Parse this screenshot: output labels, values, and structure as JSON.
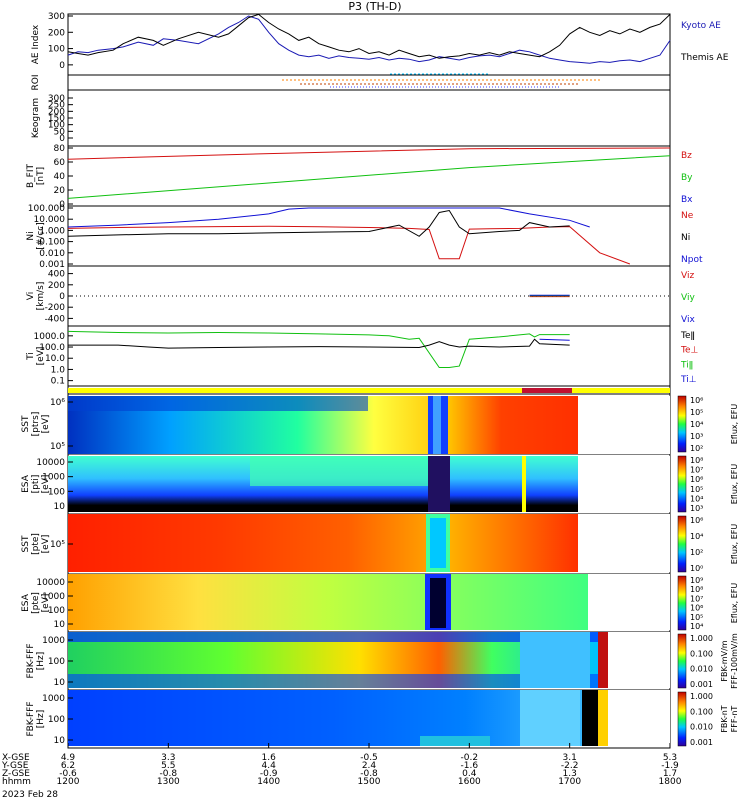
{
  "chart_data": {
    "type": "line",
    "title": "P3 (TH-D)",
    "date_label": "2023 Feb 28",
    "time_axis": {
      "row_labels": [
        "X-GSE",
        "Y-GSE",
        "Z-GSE",
        "hhmm"
      ],
      "ticks": [
        {
          "x_gse": "4.9",
          "y_gse": "6.2",
          "z_gse": "-0.6",
          "hhmm": "1200"
        },
        {
          "x_gse": "3.3",
          "y_gse": "5.5",
          "z_gse": "-0.8",
          "hhmm": "1300"
        },
        {
          "x_gse": "1.6",
          "y_gse": "4.4",
          "z_gse": "-0.9",
          "hhmm": "1400"
        },
        {
          "x_gse": "-0.5",
          "y_gse": "2.4",
          "z_gse": "-0.8",
          "hhmm": "1500"
        },
        {
          "x_gse": "-0.2",
          "y_gse": "-1.6",
          "z_gse": "0.4",
          "hhmm": "1600"
        },
        {
          "x_gse": "3.1",
          "y_gse": "-2.2",
          "z_gse": "1.3",
          "hhmm": "1700"
        },
        {
          "x_gse": "5.3",
          "y_gse": "-1.9",
          "z_gse": "1.7",
          "hhmm": "1800"
        }
      ]
    },
    "panels": [
      {
        "id": "ae",
        "ylabel": "AE Index",
        "yticks": [
          "300",
          "200",
          "100",
          "0"
        ],
        "ylim": [
          -50,
          300
        ],
        "legend": [
          {
            "name": "Kyoto AE",
            "color": "#1a1ab4"
          },
          {
            "name": "Themis AE",
            "color": "#000000"
          }
        ],
        "series": [
          {
            "name": "Kyoto AE",
            "color": "#1a1ab4",
            "x": [
              0,
              0.1,
              0.2,
              0.3,
              0.45,
              0.55,
              0.7,
              0.85,
              0.95,
              1.1,
              1.3,
              1.5,
              1.6,
              1.7,
              1.8,
              1.9,
              2.0,
              2.1,
              2.2,
              2.3,
              2.4,
              2.5,
              2.6,
              2.7,
              2.8,
              2.9,
              3.0,
              3.1,
              3.2,
              3.3,
              3.4,
              3.5,
              3.6,
              3.7,
              3.8,
              3.9,
              4.0,
              4.1,
              4.2,
              4.3,
              4.4,
              4.5,
              4.6,
              4.7,
              4.8,
              4.9,
              5.0,
              5.1,
              5.2,
              5.3,
              5.4,
              5.5,
              5.6,
              5.7,
              5.8,
              5.9,
              6.0
            ],
            "y": [
              60,
              80,
              75,
              90,
              100,
              110,
              140,
              120,
              160,
              150,
              130,
              190,
              230,
              260,
              300,
              280,
              200,
              130,
              90,
              60,
              50,
              60,
              40,
              55,
              45,
              40,
              35,
              45,
              30,
              40,
              35,
              20,
              30,
              50,
              40,
              30,
              45,
              55,
              60,
              50,
              70,
              90,
              80,
              60,
              40,
              30,
              20,
              15,
              10,
              20,
              15,
              25,
              30,
              20,
              40,
              60,
              150
            ]
          },
          {
            "name": "Themis AE",
            "color": "#000000",
            "x": [
              0,
              0.1,
              0.2,
              0.3,
              0.45,
              0.55,
              0.7,
              0.85,
              0.95,
              1.1,
              1.3,
              1.5,
              1.6,
              1.7,
              1.8,
              1.9,
              2.0,
              2.1,
              2.2,
              2.3,
              2.4,
              2.5,
              2.6,
              2.7,
              2.8,
              2.9,
              3.0,
              3.1,
              3.2,
              3.3,
              3.4,
              3.5,
              3.6,
              3.7,
              3.8,
              3.9,
              4.0,
              4.1,
              4.2,
              4.3,
              4.4,
              4.5,
              4.6,
              4.7,
              4.8,
              4.9,
              5.0,
              5.1,
              5.2,
              5.3,
              5.4,
              5.5,
              5.6,
              5.7,
              5.8,
              5.9,
              6.0
            ],
            "y": [
              80,
              70,
              60,
              75,
              90,
              130,
              170,
              150,
              120,
              160,
              200,
              170,
              190,
              240,
              290,
              310,
              260,
              220,
              190,
              150,
              170,
              130,
              110,
              90,
              80,
              100,
              70,
              80,
              60,
              90,
              70,
              50,
              60,
              40,
              50,
              55,
              70,
              60,
              75,
              60,
              80,
              70,
              60,
              50,
              80,
              120,
              190,
              230,
              200,
              180,
              210,
              190,
              220,
              200,
              230,
              250,
              310
            ]
          }
        ]
      },
      {
        "id": "roi",
        "ylabel": "ROI"
      },
      {
        "id": "keogram",
        "ylabel": "Keogram",
        "yticks": [
          "300",
          "250",
          "200",
          "150",
          "100",
          "50",
          "0"
        ]
      },
      {
        "id": "bfit",
        "ylabel": "B_FIT [nT]",
        "ylabel_lines": [
          "B_FIT",
          "[nT]"
        ],
        "yticks": [
          "80",
          "60",
          "40",
          "20",
          "0"
        ],
        "ylim": [
          0,
          80
        ],
        "legend": [
          {
            "name": "Bz",
            "color": "#d41010"
          },
          {
            "name": "By",
            "color": "#10c010"
          },
          {
            "name": "Bx",
            "color": "#1010d4"
          }
        ],
        "series": [
          {
            "name": "Bz",
            "color": "#d41010",
            "x": [
              0,
              2.0,
              4.0,
              6.0
            ],
            "y": [
              64,
              72,
              79,
              80
            ]
          },
          {
            "name": "By",
            "color": "#10c010",
            "x": [
              0,
              2.0,
              4.0,
              6.0
            ],
            "y": [
              8,
              30,
              52,
              69
            ]
          }
        ]
      },
      {
        "id": "ni",
        "ylabel": "Ni [#/cc]",
        "ylabel_lines": [
          "Ni",
          "[#/cc]"
        ],
        "yticks": [
          "100.000",
          "10.000",
          "1.000",
          "0.100",
          "0.010",
          "0.001"
        ],
        "ylim": [
          0.001,
          100
        ],
        "scale": "log",
        "legend": [
          {
            "name": "Ne",
            "color": "#d41010"
          },
          {
            "name": "Ni",
            "color": "#000000"
          },
          {
            "name": "Npot",
            "color": "#1010d4"
          }
        ],
        "series": [
          {
            "name": "Npot",
            "color": "#1010d4",
            "x": [
              0,
              0.5,
              1.0,
              1.5,
              2.0,
              2.2,
              2.4,
              2.6,
              2.8,
              3.0,
              3.2,
              4.3,
              4.6,
              5.0,
              5.2
            ],
            "y": [
              2.0,
              3.0,
              5.0,
              10.0,
              30.0,
              80.0,
              100.0,
              100.0,
              100.0,
              100.0,
              100.0,
              100.0,
              30.0,
              8.0,
              2.0
            ]
          },
          {
            "name": "Ne",
            "color": "#d41010",
            "x": [
              0,
              0.5,
              1.0,
              1.5,
              2.0,
              2.5,
              3.0,
              3.4,
              3.6,
              3.7,
              3.9,
              4.0,
              4.2,
              4.5,
              4.8,
              5.0,
              5.3,
              5.6
            ],
            "y": [
              1.5,
              1.8,
              2.0,
              2.2,
              2.3,
              2.1,
              1.8,
              1.5,
              1.2,
              0.003,
              0.003,
              1.3,
              1.4,
              1.5,
              2.0,
              2.2,
              0.01,
              0.001
            ]
          },
          {
            "name": "Ni",
            "color": "#000000",
            "x": [
              0,
              0.5,
              1.0,
              1.5,
              2.0,
              2.5,
              3.0,
              3.3,
              3.5,
              3.6,
              3.7,
              3.8,
              3.9,
              4.0,
              4.3,
              4.5,
              4.6,
              4.8,
              5.0
            ],
            "y": [
              0.3,
              0.4,
              0.5,
              0.5,
              0.6,
              0.7,
              0.8,
              3.0,
              0.3,
              2.0,
              40.0,
              60.0,
              2.0,
              0.5,
              0.8,
              1.0,
              5.0,
              2.0,
              2.5
            ]
          }
        ]
      },
      {
        "id": "vi",
        "ylabel": "Vi [km/s]",
        "ylabel_lines": [
          "Vi",
          "[km/s]"
        ],
        "yticks": [
          "400",
          "200",
          "0",
          "-200",
          "-400"
        ],
        "ylim": [
          -500,
          500
        ],
        "legend": [
          {
            "name": "Viz",
            "color": "#d41010"
          },
          {
            "name": "Viy",
            "color": "#10c010"
          },
          {
            "name": "Vix",
            "color": "#1010d4"
          }
        ],
        "series": [
          {
            "name": "Viz",
            "color": "#d41010",
            "x": [
              4.6,
              5.0
            ],
            "y": [
              -10,
              -10
            ]
          },
          {
            "name": "Viy",
            "color": "#10c010",
            "x": [
              4.6,
              5.0
            ],
            "y": [
              5,
              5
            ]
          },
          {
            "name": "Vix",
            "color": "#1010d4",
            "x": [
              4.6,
              5.0
            ],
            "y": [
              15,
              15
            ]
          }
        ]
      },
      {
        "id": "ti",
        "ylabel": "Ti [eV]",
        "ylabel_lines": [
          "Ti",
          "[eV]"
        ],
        "yticks": [
          "1000.0",
          "100.0",
          "10.0",
          "1.0",
          "0.1"
        ],
        "ylim": [
          0.05,
          5000
        ],
        "scale": "log",
        "legend": [
          {
            "name": "Teǁ",
            "color": "#000000"
          },
          {
            "name": "Te⊥",
            "color": "#d41010"
          },
          {
            "name": "Tiǁ",
            "color": "#10c010"
          },
          {
            "name": "Ti⊥",
            "color": "#1010d4"
          }
        ],
        "series": [
          {
            "name": "Tiǁ",
            "color": "#10c010",
            "x": [
              0,
              0.5,
              1.0,
              1.5,
              2.0,
              2.5,
              3.0,
              3.2,
              3.4,
              3.5,
              3.7,
              3.8,
              3.9,
              4.0,
              4.3,
              4.6,
              4.65,
              4.7,
              5.0
            ],
            "y": [
              2500,
              2000,
              1800,
              2000,
              1800,
              1500,
              1200,
              1000,
              500,
              600,
              1.5,
              1.5,
              2.0,
              500,
              800,
              1500,
              800,
              1300,
              1300
            ]
          },
          {
            "name": "Teǁ",
            "color": "#000000",
            "x": [
              0,
              0.5,
              0.8,
              1.0,
              1.5,
              2.0,
              2.5,
              3.0,
              3.5,
              3.6,
              3.7,
              3.8,
              3.9,
              4.0,
              4.3,
              4.6,
              4.65,
              4.7,
              5.0
            ],
            "y": [
              150,
              150,
              100,
              80,
              90,
              100,
              110,
              100,
              90,
              150,
              300,
              150,
              100,
              120,
              100,
              120,
              500,
              200,
              150
            ]
          },
          {
            "name": "Ti⊥",
            "color": "#1010d4",
            "x": [
              4.7,
              5.0
            ],
            "y": [
              500,
              400
            ]
          }
        ]
      },
      {
        "id": "bar",
        "ylabel": ""
      },
      {
        "id": "sst_pi",
        "ylabel": "SST [ptrs] [eV]",
        "ylabel_lines": [
          "SST",
          "[ptrs]",
          "[eV]"
        ],
        "yticks": [
          "10⁶",
          "10⁵"
        ],
        "colorbar_label": "Eflux, EFU",
        "colorbar_ticks": [
          "10⁶",
          "10⁵",
          "10⁴",
          "10³",
          "10²"
        ]
      },
      {
        "id": "esa_pi",
        "ylabel": "ESA [pti] [eV]",
        "ylabel_lines": [
          "ESA",
          "[pti]",
          "[eV]"
        ],
        "yticks": [
          "10000",
          "1000",
          "100",
          "10"
        ],
        "colorbar_label": "Eflux, EFU",
        "colorbar_ticks": [
          "10⁸",
          "10⁷",
          "10⁶",
          "10⁵",
          "10⁴",
          "10³"
        ]
      },
      {
        "id": "sst_pe",
        "ylabel": "SST [pte] [eV]",
        "ylabel_lines": [
          "SST",
          "[pte]",
          "[eV]"
        ],
        "yticks": [
          "10⁵"
        ],
        "colorbar_label": "Eflux, EFU",
        "colorbar_ticks": [
          "10⁶",
          "10⁴",
          "10²",
          "10⁰"
        ]
      },
      {
        "id": "esa_pe",
        "ylabel": "ESA [pte] [eV]",
        "ylabel_lines": [
          "ESA",
          "[pte]",
          "[eV]"
        ],
        "yticks": [
          "10000",
          "1000",
          "100",
          "10"
        ],
        "colorbar_label": "Eflux, EFU",
        "colorbar_ticks": [
          "10⁹",
          "10⁸",
          "10⁷",
          "10⁶",
          "10⁵",
          "10⁴"
        ]
      },
      {
        "id": "fbk_fff1",
        "ylabel": "FBK-FFF [Hz]",
        "ylabel_lines": [
          "FBK-FFF",
          "[Hz]"
        ],
        "yticks": [
          "1000",
          "100",
          "10"
        ],
        "colorbar_label": "FFF-100mV/m",
        "colorbar_ticks": [
          "1.000",
          "0.100",
          "0.010",
          "0.001"
        ],
        "colorbar_label_inner": "FBK-mV/m"
      },
      {
        "id": "fbk_fff2",
        "ylabel": "FBK-FFF [Hz]",
        "ylabel_lines": [
          "FBK-FFF",
          "[Hz]"
        ],
        "yticks": [
          "1000",
          "100",
          "10"
        ],
        "colorbar_label": "FFF-nT",
        "colorbar_ticks": [
          "1.000",
          "0.100",
          "0.010",
          "0.001"
        ],
        "colorbar_label_inner": "FBK-nT"
      }
    ]
  }
}
